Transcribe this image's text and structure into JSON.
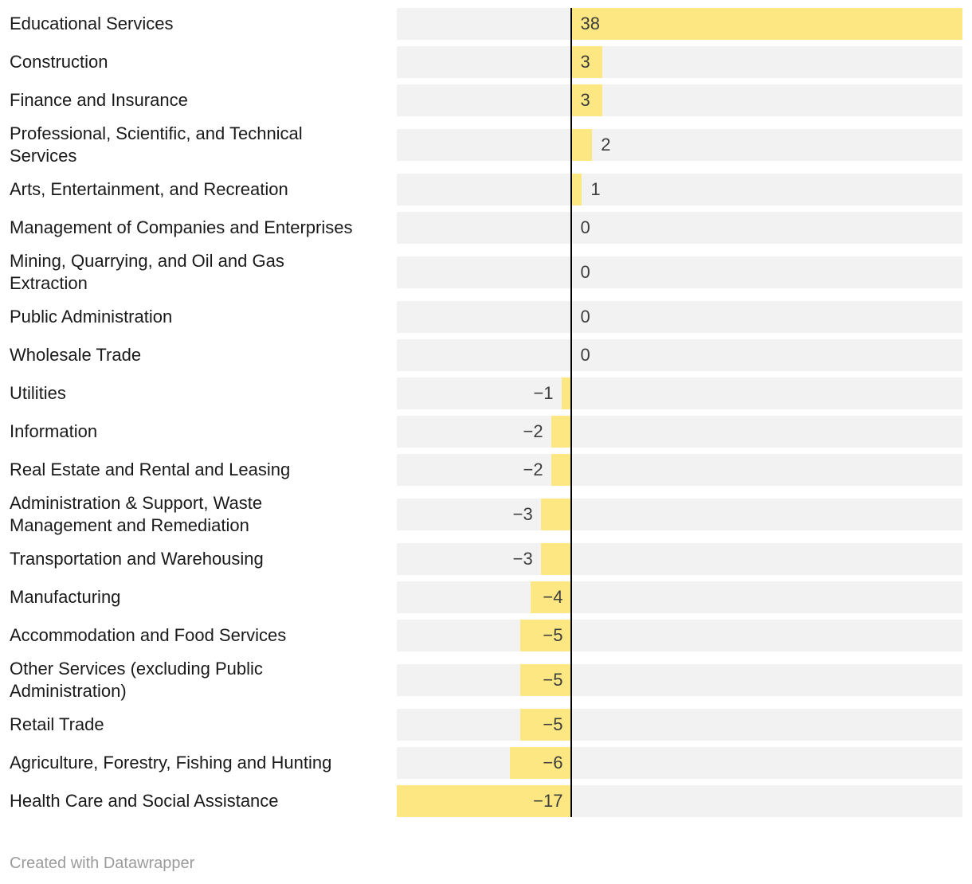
{
  "footer": {
    "credit": "Created with Datawrapper"
  },
  "chart_data": {
    "type": "bar",
    "orientation": "horizontal",
    "title": "",
    "xlabel": "",
    "ylabel": "",
    "xlim": [
      -17,
      38
    ],
    "grid": false,
    "zero_baseline": true,
    "legend": "none",
    "colors": {
      "bar": "#fce782",
      "track": "#f2f2f2",
      "axis": "#000000",
      "label": "#1a1a1a",
      "value": "#3d3d3d",
      "credit": "#9b9b9b"
    },
    "rows": [
      {
        "label": "Educational Services",
        "value": 38,
        "display": "38"
      },
      {
        "label": "Construction",
        "value": 3,
        "display": "3"
      },
      {
        "label": "Finance and Insurance",
        "value": 3,
        "display": "3"
      },
      {
        "label": "Professional, Scientific, and Technical\nServices",
        "value": 2,
        "display": "2"
      },
      {
        "label": "Arts, Entertainment, and Recreation",
        "value": 1,
        "display": "1"
      },
      {
        "label": "Management of Companies and Enterprises",
        "value": 0,
        "display": "0"
      },
      {
        "label": "Mining, Quarrying, and Oil and Gas\nExtraction",
        "value": 0,
        "display": "0"
      },
      {
        "label": "Public Administration",
        "value": 0,
        "display": "0"
      },
      {
        "label": "Wholesale Trade",
        "value": 0,
        "display": "0"
      },
      {
        "label": "Utilities",
        "value": -1,
        "display": "−1"
      },
      {
        "label": "Information",
        "value": -2,
        "display": "−2"
      },
      {
        "label": "Real Estate and Rental and Leasing",
        "value": -2,
        "display": "−2"
      },
      {
        "label": "Administration & Support, Waste\nManagement and Remediation",
        "value": -3,
        "display": "−3"
      },
      {
        "label": "Transportation and Warehousing",
        "value": -3,
        "display": "−3"
      },
      {
        "label": "Manufacturing",
        "value": -4,
        "display": "−4"
      },
      {
        "label": "Accommodation and Food Services",
        "value": -5,
        "display": "−5"
      },
      {
        "label": "Other Services (excluding Public\nAdministration)",
        "value": -5,
        "display": "−5"
      },
      {
        "label": "Retail Trade",
        "value": -5,
        "display": "−5"
      },
      {
        "label": "Agriculture, Forestry, Fishing and Hunting",
        "value": -6,
        "display": "−6"
      },
      {
        "label": "Health Care and Social Assistance",
        "value": -17,
        "display": "−17"
      }
    ]
  }
}
